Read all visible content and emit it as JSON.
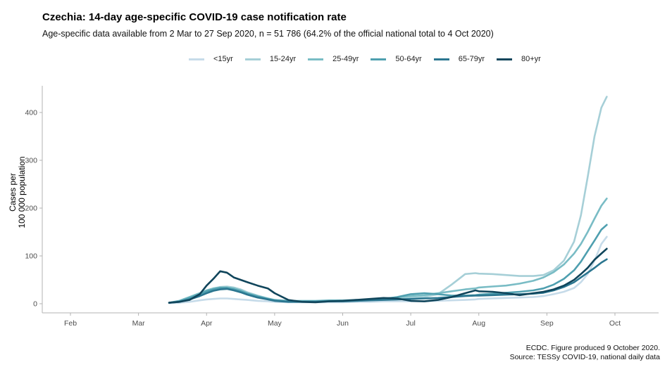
{
  "header": {
    "title": "Czechia: 14-day age-specific COVID-19 case notification rate",
    "subtitle": "Age-specific data available from 2 Mar to 27 Sep 2020, n = 51 786 (64.2% of the official national total to 4 Oct 2020)"
  },
  "caption": {
    "line1": "ECDC. Figure produced 9 October 2020.",
    "line2": "Source: TESSy COVID-19, national daily data"
  },
  "chart_data": {
    "type": "line",
    "title": "Czechia: 14-day age-specific COVID-19 case notification rate",
    "xlabel": "",
    "ylabel_lines": [
      "Cases per",
      "100 000 population"
    ],
    "ylim": [
      -15,
      460
    ],
    "yticks": [
      0,
      100,
      200,
      300,
      400
    ],
    "xlim_months": [
      0.6,
      9.65
    ],
    "xticks": [
      {
        "label": "Feb",
        "month": 1
      },
      {
        "label": "Mar",
        "month": 2
      },
      {
        "label": "Apr",
        "month": 3
      },
      {
        "label": "May",
        "month": 4
      },
      {
        "label": "Jun",
        "month": 5
      },
      {
        "label": "Jul",
        "month": 6
      },
      {
        "label": "Aug",
        "month": 7
      },
      {
        "label": "Sep",
        "month": 8
      },
      {
        "label": "Oct",
        "month": 9
      }
    ],
    "x_note": "x values expressed as fractional months since 1 Jan 2020 (1 = 1 Feb, 2 = 1 Mar ...)",
    "grid": false,
    "legend_position": "top",
    "x": [
      2.45,
      2.6,
      2.75,
      2.9,
      3.0,
      3.1,
      3.2,
      3.3,
      3.4,
      3.5,
      3.6,
      3.75,
      3.9,
      4.0,
      4.2,
      4.4,
      4.6,
      4.8,
      5.0,
      5.2,
      5.4,
      5.6,
      5.8,
      6.0,
      6.2,
      6.4,
      6.6,
      6.8,
      6.95,
      7.0,
      7.2,
      7.4,
      7.6,
      7.8,
      7.95,
      8.1,
      8.25,
      8.4,
      8.5,
      8.6,
      8.7,
      8.8,
      8.88
    ],
    "series": [
      {
        "name": "<15yr",
        "color": "#c6dbe9",
        "values": [
          1,
          2,
          4,
          7,
          9,
          10,
          11,
          11,
          10,
          9,
          8,
          6,
          5,
          4,
          3,
          3,
          3,
          3,
          3,
          4,
          4,
          5,
          5,
          5,
          5,
          6,
          7,
          8,
          9,
          10,
          11,
          12,
          13,
          14,
          16,
          20,
          25,
          33,
          45,
          62,
          90,
          125,
          140
        ]
      },
      {
        "name": "15-24yr",
        "color": "#a6cfd7",
        "values": [
          2,
          6,
          14,
          22,
          28,
          32,
          35,
          36,
          34,
          30,
          24,
          17,
          11,
          8,
          6,
          5,
          5,
          5,
          5,
          6,
          7,
          8,
          9,
          12,
          14,
          20,
          40,
          62,
          64,
          63,
          62,
          60,
          58,
          58,
          60,
          70,
          90,
          130,
          185,
          265,
          350,
          410,
          433
        ]
      },
      {
        "name": "25-49yr",
        "color": "#79bcc5",
        "values": [
          2,
          6,
          14,
          22,
          28,
          32,
          34,
          34,
          32,
          28,
          22,
          16,
          11,
          8,
          6,
          6,
          6,
          7,
          7,
          8,
          9,
          11,
          13,
          16,
          18,
          22,
          26,
          30,
          32,
          34,
          36,
          38,
          42,
          48,
          55,
          66,
          82,
          105,
          125,
          150,
          178,
          205,
          220
        ]
      },
      {
        "name": "50-64yr",
        "color": "#4e9faf",
        "values": [
          2,
          5,
          12,
          20,
          26,
          30,
          33,
          33,
          30,
          26,
          21,
          15,
          10,
          7,
          5,
          5,
          5,
          6,
          6,
          7,
          8,
          10,
          14,
          20,
          22,
          20,
          17,
          17,
          18,
          19,
          21,
          23,
          25,
          28,
          32,
          40,
          52,
          70,
          88,
          110,
          132,
          155,
          165
        ]
      },
      {
        "name": "65-79yr",
        "color": "#2b7690",
        "values": [
          2,
          4,
          9,
          16,
          22,
          27,
          30,
          31,
          28,
          24,
          19,
          13,
          9,
          6,
          4,
          4,
          4,
          5,
          5,
          6,
          7,
          8,
          9,
          10,
          11,
          12,
          14,
          16,
          17,
          17,
          18,
          19,
          20,
          21,
          23,
          28,
          35,
          45,
          55,
          65,
          75,
          86,
          93
        ]
      },
      {
        "name": "80+yr",
        "color": "#10455b",
        "values": [
          2,
          4,
          8,
          20,
          38,
          52,
          68,
          65,
          55,
          50,
          45,
          38,
          32,
          22,
          8,
          4,
          3,
          5,
          6,
          8,
          10,
          12,
          11,
          6,
          5,
          8,
          14,
          22,
          28,
          26,
          25,
          22,
          18,
          22,
          25,
          30,
          38,
          50,
          62,
          75,
          92,
          105,
          115
        ]
      }
    ]
  }
}
